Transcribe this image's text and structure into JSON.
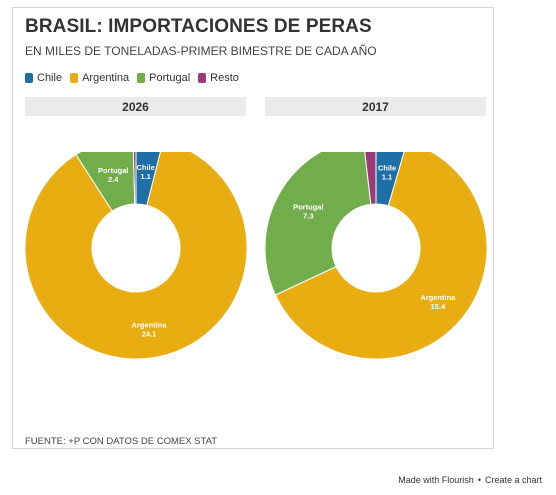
{
  "header": {
    "title": "BRASIL: IMPORTACIONES DE PERAS",
    "subtitle": "EN MILES DE TONELADAS-PRIMER BIMESTRE DE CADA AÑO"
  },
  "legend": [
    {
      "label": "Chile",
      "color": "#1e6fa5"
    },
    {
      "label": "Argentina",
      "color": "#e9ad12"
    },
    {
      "label": "Portugal",
      "color": "#72ad4b"
    },
    {
      "label": "Resto",
      "color": "#9b3a76"
    }
  ],
  "chart_data": [
    {
      "type": "pie",
      "title": "2026",
      "categories": [
        "Chile",
        "Argentina",
        "Portugal",
        "Resto"
      ],
      "values": [
        1.1,
        24.1,
        2.4,
        0.12
      ],
      "labels": [
        {
          "name": "Chile",
          "value": "1.1"
        },
        {
          "name": "Argentina",
          "value": "24.1"
        },
        {
          "name": "Portugal",
          "value": "2.4"
        }
      ]
    },
    {
      "type": "pie",
      "title": "2017",
      "categories": [
        "Chile",
        "Argentina",
        "Portugal",
        "Resto"
      ],
      "values": [
        1.1,
        15.4,
        7.3,
        0.45
      ],
      "labels": [
        {
          "name": "Chile",
          "value": "1.1"
        },
        {
          "name": "Argentina",
          "value": "15.4"
        },
        {
          "name": "Portugal",
          "value": "7.3"
        }
      ]
    }
  ],
  "footer": {
    "source": "FUENTE: +P CON DATOS DE COMEX STAT"
  },
  "credit": {
    "made_with": "Made with Flourish",
    "separator": "•",
    "create": "Create a chart"
  }
}
